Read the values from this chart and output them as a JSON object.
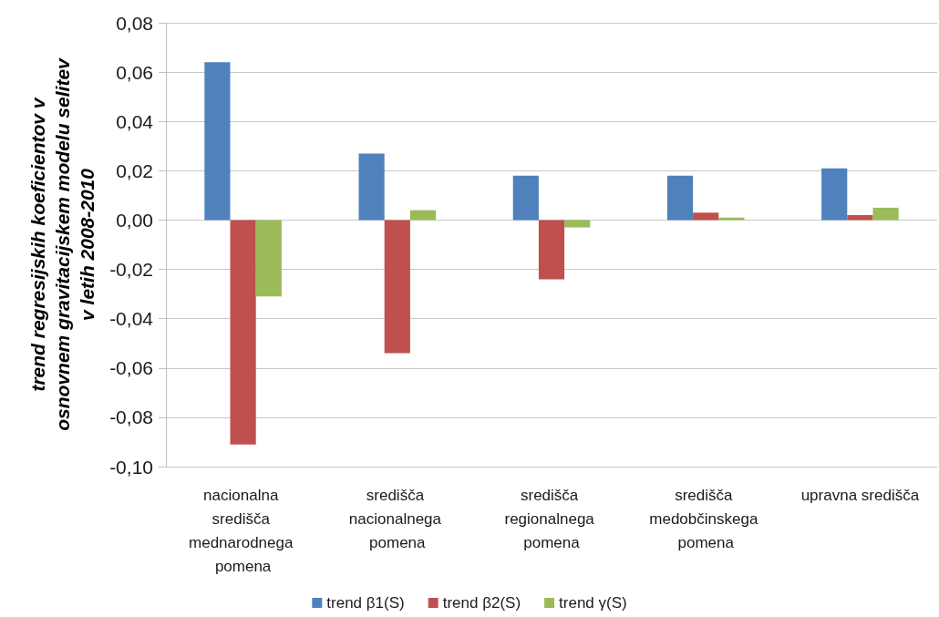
{
  "chart_data": {
    "type": "bar",
    "ylabel": "trend regresijskih koeficientov v osnovnem gravitacijskem modelu selitev v letih 2008-2010",
    "categories": [
      "nacionalna središča mednarodnega pomena",
      "središča nacionalnega pomena",
      "središča regionalnega pomena",
      "središča medobčinskega pomena",
      "upravna središča"
    ],
    "series": [
      {
        "name": "trend β1(S)",
        "color": "#4f81bd",
        "values": [
          0.064,
          0.027,
          0.018,
          0.018,
          0.021
        ]
      },
      {
        "name": "trend β2(S)",
        "color": "#c0504d",
        "values": [
          -0.091,
          -0.054,
          -0.024,
          0.003,
          0.002
        ]
      },
      {
        "name": "trend γ(S)",
        "color": "#9bbb59",
        "values": [
          -0.031,
          0.004,
          -0.003,
          0.001,
          0.005
        ]
      }
    ],
    "ylim": [
      -0.1,
      0.08
    ],
    "yticks": [
      {
        "value": -0.1,
        "label": "-0,10"
      },
      {
        "value": -0.08,
        "label": "-0,08"
      },
      {
        "value": -0.06,
        "label": "-0,06"
      },
      {
        "value": -0.04,
        "label": "-0,04"
      },
      {
        "value": -0.02,
        "label": "-0,02"
      },
      {
        "value": 0,
        "label": "0,00"
      },
      {
        "value": 0.02,
        "label": "0,02"
      },
      {
        "value": 0.04,
        "label": "0,04"
      },
      {
        "value": 0.06,
        "label": "0,06"
      },
      {
        "value": 0.08,
        "label": "0,08"
      }
    ],
    "grid": "y",
    "legend": "bottom"
  }
}
